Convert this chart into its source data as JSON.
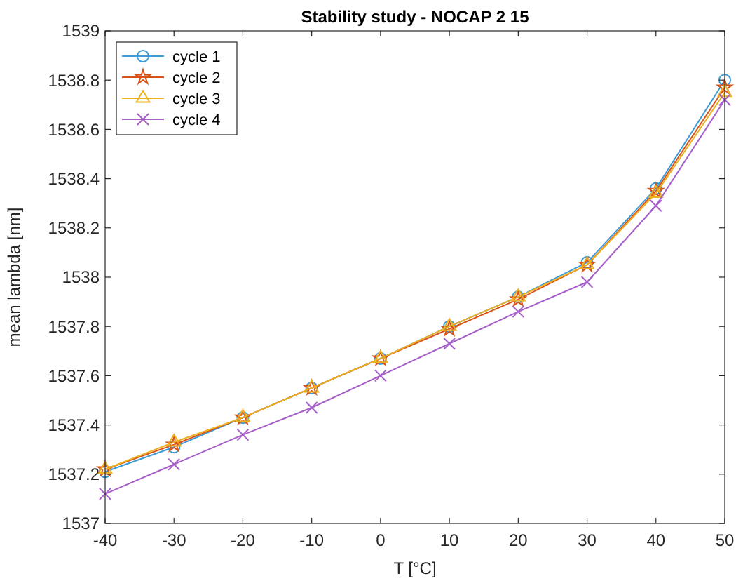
{
  "chart_data": {
    "type": "line",
    "title": "Stability study - NOCAP 2 15",
    "xlabel": "T [°C]",
    "ylabel": "mean lambda [nm]",
    "x": [
      -40,
      -30,
      -20,
      -10,
      0,
      10,
      20,
      30,
      40,
      50
    ],
    "series": [
      {
        "name": "cycle 1",
        "color": "#3d9bd6",
        "marker": "circle",
        "values": [
          1537.21,
          1537.31,
          1537.43,
          1537.55,
          1537.67,
          1537.8,
          1537.92,
          1538.06,
          1538.36,
          1538.8
        ]
      },
      {
        "name": "cycle 2",
        "color": "#d95319",
        "marker": "star",
        "values": [
          1537.22,
          1537.32,
          1537.43,
          1537.55,
          1537.67,
          1537.79,
          1537.91,
          1538.05,
          1538.35,
          1538.77
        ]
      },
      {
        "name": "cycle 3",
        "color": "#edb120",
        "marker": "triangle",
        "values": [
          1537.22,
          1537.33,
          1537.43,
          1537.55,
          1537.67,
          1537.8,
          1537.92,
          1538.05,
          1538.34,
          1538.75
        ]
      },
      {
        "name": "cycle 4",
        "color": "#a65fc9",
        "marker": "cross",
        "values": [
          1537.12,
          1537.24,
          1537.36,
          1537.47,
          1537.6,
          1537.73,
          1537.86,
          1537.98,
          1538.29,
          1538.72
        ]
      }
    ],
    "xlim": [
      -40,
      50
    ],
    "xticks": [
      -40,
      -30,
      -20,
      -10,
      0,
      10,
      20,
      30,
      40,
      50
    ],
    "ylim": [
      1537,
      1539
    ],
    "yticks": [
      1537,
      1537.2,
      1537.4,
      1537.6,
      1537.8,
      1538,
      1538.2,
      1538.4,
      1538.6,
      1538.8,
      1539
    ],
    "grid": false,
    "legend": "top left",
    "line_style": "solid"
  }
}
